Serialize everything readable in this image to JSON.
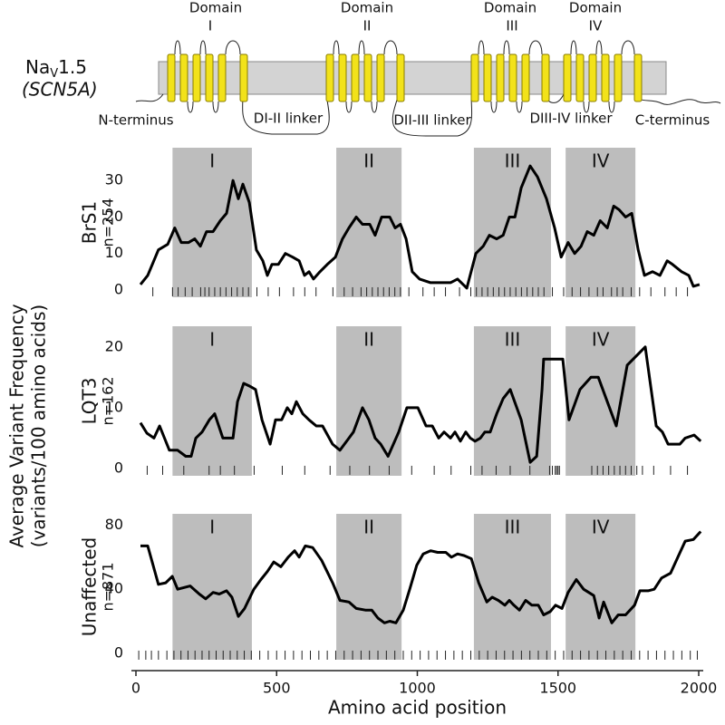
{
  "diagram": {
    "protein": {
      "name": "Na",
      "sub": "V",
      "suffix": "1.5"
    },
    "gene": "(SCN5A)",
    "domains": [
      {
        "word": "Domain",
        "numeral": "I"
      },
      {
        "word": "Domain",
        "numeral": "II"
      },
      {
        "word": "Domain",
        "numeral": "III"
      },
      {
        "word": "Domain",
        "numeral": "IV"
      }
    ],
    "labels": {
      "n_terminus": "N-terminus",
      "linker_1_2": "DI-II linker",
      "linker_2_3": "DII-III linker",
      "linker_3_4": "DIII-IV linker",
      "c_terminus": "C-terminus"
    }
  },
  "y_axis_label": [
    "Average Variant Frequency",
    "(variants/100 amino acids)"
  ],
  "chart_data": [
    {
      "type": "line",
      "ylabel": "BrS1",
      "n": "n=254",
      "color": "#000000",
      "xlim": [
        0,
        2000
      ],
      "ylim": [
        -2,
        39
      ],
      "yticks": [
        0,
        10,
        20,
        30
      ],
      "domains": [
        {
          "label": "I",
          "start": 130,
          "end": 412
        },
        {
          "label": "II",
          "start": 712,
          "end": 944
        },
        {
          "label": "III",
          "start": 1201,
          "end": 1475
        },
        {
          "label": "IV",
          "start": 1527,
          "end": 1775
        }
      ],
      "x": [
        16,
        42,
        80,
        113,
        138,
        161,
        187,
        209,
        229,
        251,
        274,
        300,
        322,
        345,
        364,
        380,
        403,
        428,
        451,
        467,
        483,
        506,
        531,
        557,
        580,
        599,
        615,
        631,
        654,
        680,
        709,
        734,
        757,
        783,
        805,
        831,
        850,
        873,
        902,
        921,
        940,
        960,
        982,
        1008,
        1047,
        1085,
        1118,
        1143,
        1176,
        1208,
        1234,
        1256,
        1282,
        1305,
        1327,
        1347,
        1369,
        1401,
        1427,
        1459,
        1488,
        1511,
        1536,
        1559,
        1582,
        1604,
        1627,
        1650,
        1675,
        1698,
        1717,
        1740,
        1762,
        1785,
        1807,
        1836,
        1862,
        1888,
        1907,
        1939,
        1965,
        1981,
        2003
      ],
      "values": [
        1.5,
        4,
        11,
        12.5,
        17,
        13,
        13,
        14,
        12,
        16,
        16,
        19,
        21,
        30,
        25,
        29,
        24,
        11,
        8,
        4,
        7,
        7,
        10,
        9,
        8,
        4,
        5,
        3,
        5,
        7,
        9,
        14,
        17,
        20,
        18,
        18,
        15,
        20,
        20,
        17,
        18,
        14,
        5,
        3,
        2,
        2,
        2,
        3,
        0.5,
        10,
        12,
        15,
        14,
        15,
        20,
        20,
        28,
        34,
        31,
        25,
        17,
        9,
        13,
        10,
        12,
        16,
        15,
        19,
        17,
        23,
        22,
        20,
        21,
        11,
        4,
        5,
        4,
        8,
        7,
        5,
        4,
        1,
        1.5
      ],
      "variants": [
        60,
        130,
        150,
        175,
        200,
        230,
        245,
        260,
        280,
        300,
        320,
        340,
        360,
        380,
        400,
        430,
        470,
        510,
        560,
        600,
        640,
        700,
        740,
        770,
        800,
        820,
        840,
        860,
        880,
        900,
        920,
        940,
        970,
        1020,
        1060,
        1100,
        1150,
        1190,
        1210,
        1230,
        1250,
        1270,
        1290,
        1310,
        1330,
        1350,
        1370,
        1390,
        1410,
        1430,
        1450,
        1480,
        1520,
        1550,
        1580,
        1610,
        1640,
        1660,
        1690,
        1710,
        1730,
        1760,
        1790,
        1830,
        1880,
        1920,
        1960
      ]
    },
    {
      "type": "line",
      "ylabel": "LQT3",
      "n": "n=162",
      "color": "#000000",
      "xlim": [
        0,
        2000
      ],
      "ylim": [
        -1.2,
        23.4
      ],
      "yticks": [
        0,
        10,
        20
      ],
      "domains": [
        {
          "label": "I",
          "start": 130,
          "end": 412
        },
        {
          "label": "II",
          "start": 712,
          "end": 944
        },
        {
          "label": "III",
          "start": 1201,
          "end": 1475
        },
        {
          "label": "IV",
          "start": 1527,
          "end": 1775
        }
      ],
      "x": [
        16,
        39,
        64,
        84,
        119,
        148,
        177,
        196,
        213,
        235,
        261,
        280,
        309,
        345,
        361,
        383,
        406,
        425,
        448,
        477,
        496,
        518,
        538,
        554,
        570,
        593,
        615,
        641,
        663,
        699,
        725,
        773,
        805,
        828,
        850,
        870,
        896,
        934,
        963,
        1002,
        1031,
        1053,
        1076,
        1095,
        1118,
        1134,
        1153,
        1172,
        1188,
        1205,
        1224,
        1240,
        1259,
        1282,
        1305,
        1330,
        1369,
        1401,
        1424,
        1443,
        1449,
        1485,
        1517,
        1539,
        1578,
        1617,
        1643,
        1675,
        1707,
        1746,
        1810,
        1849,
        1871,
        1891,
        1933,
        1952,
        1984,
        2007
      ],
      "values": [
        7.5,
        5.8,
        5,
        7,
        3,
        3,
        2,
        2,
        5,
        6,
        8,
        9,
        5,
        5,
        11,
        14,
        13.5,
        13,
        8,
        4,
        8,
        8,
        10,
        9,
        11,
        9,
        8,
        7,
        7,
        4,
        3,
        6,
        10,
        8,
        5,
        4,
        2,
        6,
        10,
        10,
        7,
        7,
        5,
        6,
        5,
        6,
        4.5,
        6,
        5,
        4.5,
        5,
        6,
        6,
        9,
        11.5,
        13,
        8,
        1,
        2,
        13,
        18,
        18,
        18,
        8,
        13,
        15,
        15,
        11,
        7,
        17,
        20,
        7,
        6,
        4,
        4,
        5,
        5.5,
        4.5
      ],
      "variants": [
        40,
        95,
        170,
        260,
        300,
        350,
        420,
        520,
        600,
        690,
        760,
        830,
        900,
        980,
        1060,
        1120,
        1190,
        1230,
        1280,
        1330,
        1400,
        1470,
        1480,
        1490,
        1495,
        1500,
        1505,
        1620,
        1640,
        1660,
        1680,
        1700,
        1720,
        1740,
        1760,
        1780,
        1800,
        1840,
        1900,
        1960
      ]
    },
    {
      "type": "line",
      "ylabel": "Unaffected",
      "n": "n=871",
      "color": "#000000",
      "xlim": [
        0,
        2000
      ],
      "ylim": [
        -4,
        87
      ],
      "yticks": [
        0,
        40,
        80
      ],
      "xticks": [
        0,
        500,
        1000,
        1500,
        2000
      ],
      "xlabel": "Amino acid position",
      "domains": [
        {
          "label": "I",
          "start": 130,
          "end": 412
        },
        {
          "label": "II",
          "start": 712,
          "end": 944
        },
        {
          "label": "III",
          "start": 1201,
          "end": 1475
        },
        {
          "label": "IV",
          "start": 1527,
          "end": 1775
        }
      ],
      "x": [
        16,
        42,
        80,
        106,
        129,
        148,
        193,
        225,
        248,
        274,
        296,
        322,
        341,
        364,
        386,
        419,
        444,
        467,
        490,
        515,
        541,
        564,
        580,
        602,
        628,
        660,
        699,
        725,
        757,
        783,
        815,
        838,
        860,
        883,
        902,
        924,
        950,
        973,
        998,
        1021,
        1047,
        1072,
        1101,
        1121,
        1143,
        1166,
        1192,
        1218,
        1247,
        1266,
        1288,
        1311,
        1327,
        1343,
        1363,
        1385,
        1407,
        1430,
        1449,
        1472,
        1491,
        1514,
        1536,
        1565,
        1591,
        1627,
        1646,
        1662,
        1691,
        1714,
        1740,
        1772,
        1791,
        1820,
        1842,
        1868,
        1900,
        1926,
        1952,
        1981,
        2007
      ],
      "values": [
        67,
        67,
        43,
        44,
        48,
        40,
        42,
        37,
        34,
        38,
        37,
        39,
        35,
        23,
        28,
        40,
        46,
        51,
        57,
        54,
        60,
        64,
        60,
        67,
        66,
        58,
        44,
        33,
        32,
        28,
        27,
        27,
        22,
        19,
        20,
        19,
        27,
        40,
        55,
        62,
        64,
        63,
        63,
        60,
        62,
        61,
        59,
        44,
        32,
        35,
        33,
        30,
        33,
        30,
        27,
        33,
        30,
        30,
        24,
        26,
        30,
        28,
        38,
        46,
        40,
        36,
        22,
        32,
        19,
        24,
        24,
        30,
        39,
        39,
        40,
        47,
        50,
        60,
        70,
        71,
        76
      ],
      "variants": [
        10,
        35,
        55,
        80,
        110,
        135,
        160,
        185,
        210,
        235,
        260,
        285,
        310,
        335,
        360,
        385,
        410,
        440,
        470,
        500,
        530,
        560,
        590,
        620,
        650,
        680,
        710,
        740,
        770,
        800,
        830,
        860,
        890,
        920,
        950,
        980,
        1010,
        1040,
        1070,
        1100,
        1130,
        1160,
        1190,
        1220,
        1250,
        1280,
        1310,
        1340,
        1370,
        1400,
        1430,
        1460,
        1490,
        1520,
        1550,
        1580,
        1610,
        1640,
        1670,
        1700,
        1730,
        1760,
        1790,
        1820,
        1850,
        1880,
        1910,
        1940,
        1970,
        1995
      ]
    }
  ]
}
